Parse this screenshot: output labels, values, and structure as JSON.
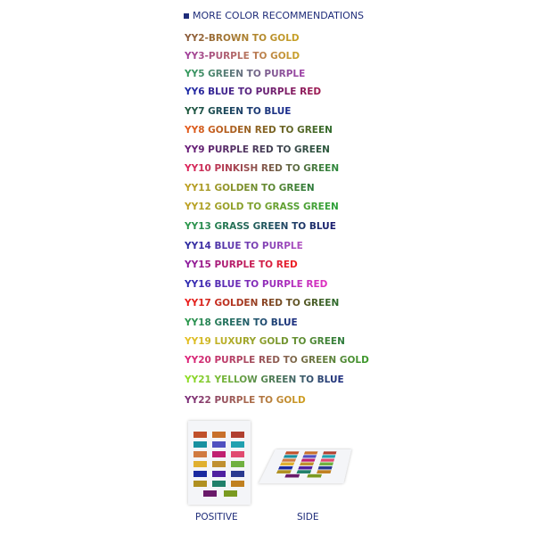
{
  "header": {
    "title": "MORE COLOR RECOMMENDATIONS",
    "color": "#1f2d7a"
  },
  "items": [
    {
      "label": "YY2-BROWN TO GOLD",
      "colors": [
        "#8a5a3a",
        "#c9a227"
      ]
    },
    {
      "label": "YY3-PURPLE TO GOLD",
      "colors": [
        "#a03c9c",
        "#c9a227"
      ]
    },
    {
      "label": "YY5 GREEN TO PURPLE",
      "colors": [
        "#2f9a5a",
        "#a040a8"
      ]
    },
    {
      "label": "YY6 BLUE TO PURPLE RED",
      "colors": [
        "#1a2aa8",
        "#a01a50"
      ]
    },
    {
      "label": "YY7 GREEN TO BLUE",
      "colors": [
        "#1e5a3a",
        "#1a2a90"
      ]
    },
    {
      "label": "YY8 GOLDEN RED TO GREEN",
      "colors": [
        "#e85a1a",
        "#2e6a2a"
      ]
    },
    {
      "label": "YY9 PURPLE RED TO GREEN",
      "colors": [
        "#6a1a7a",
        "#2a5a3a"
      ]
    },
    {
      "label": "YY10 PINKISH RED TO GREEN",
      "colors": [
        "#e0205a",
        "#2a8a3a"
      ]
    },
    {
      "label": "YY11 GOLDEN TO GREEN",
      "colors": [
        "#c0a020",
        "#2a7a3a"
      ]
    },
    {
      "label": "YY12 GOLD TO GRASS GREEN",
      "colors": [
        "#c0a020",
        "#2aa03a"
      ]
    },
    {
      "label": "YY13 GRASS GREEN TO BLUE",
      "colors": [
        "#2a9a4a",
        "#1a1a70"
      ]
    },
    {
      "label": "YY14 BLUE TO PURPLE",
      "colors": [
        "#2a2aa0",
        "#b050c0"
      ]
    },
    {
      "label": "YY15 PURPLE TO RED",
      "colors": [
        "#8a1aa0",
        "#f02020"
      ]
    },
    {
      "label": "YY16 BLUE TO PURPLE RED",
      "colors": [
        "#2a2ab0",
        "#e030c0"
      ]
    },
    {
      "label": "YY17 GOLDEN RED TO GREEN",
      "colors": [
        "#f01a1a",
        "#2a6a2a"
      ]
    },
    {
      "label": "YY18 GREEN TO BLUE",
      "colors": [
        "#2a9a4a",
        "#1a2a80"
      ]
    },
    {
      "label": "YY19 LUXURY GOLD TO GREEN",
      "colors": [
        "#e8c020",
        "#2a7a3a"
      ]
    },
    {
      "label": "YY20 PURPLE RED TO GREEN GOLD",
      "colors": [
        "#e0207a",
        "#3a9a2a"
      ]
    },
    {
      "label": "YY21 YELLOW GREEN TO BLUE",
      "colors": [
        "#90e020",
        "#1a2a80"
      ]
    },
    {
      "label": "YY22 PURPLE TO GOLD",
      "colors": [
        "#7a2a7a",
        "#d0a020"
      ]
    }
  ],
  "images": {
    "positive_label": "POSITIVE",
    "side_label": "SIDE",
    "swatches": [
      "#c0502a",
      "#c8702a",
      "#b04030",
      "#1890a0",
      "#5050c0",
      "#20a0b0",
      "#d07a40",
      "#c02070",
      "#e04a70",
      "#e0b030",
      "#c09030",
      "#70b040",
      "#1a2aa0",
      "#5020a0",
      "#2a3a90",
      "#b09020",
      "#20806a",
      "#c08020"
    ],
    "bottom_swatches": [
      "#6a1a6a",
      "#7a9a20"
    ]
  }
}
